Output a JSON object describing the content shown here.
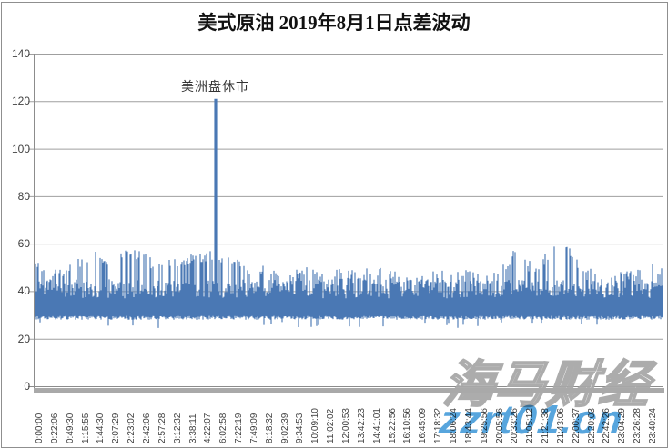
{
  "title": "美式原油 2019年8月1日点差波动",
  "annotation": "美洲盘休市",
  "watermark": {
    "brand": "海马财经",
    "url": "zzrt01.cn"
  },
  "colors": {
    "bar": "#4a78b4",
    "gridline": "#9f9f9f",
    "axis": "#8c8c8c",
    "strip": "#a9a9a9",
    "title_text": "#111111",
    "tick_text": "#3f3f3f",
    "watermark_blue": "#57a5dd",
    "watermark_outline": "#a8a8a8"
  },
  "chart_data": {
    "type": "line",
    "title": "美式原油 2019年8月1日点差波动",
    "xlabel": "",
    "ylabel": "",
    "ylim": [
      0,
      140
    ],
    "ytick_step": 20,
    "y_ticks": [
      0,
      20,
      40,
      60,
      80,
      100,
      120,
      140
    ],
    "grid": true,
    "x_labels": [
      "0:00:00",
      "0:22:06",
      "0:49:30",
      "1:15:55",
      "1:44:30",
      "2:07:29",
      "2:23:02",
      "2:42:06",
      "2:57:28",
      "3:12:32",
      "3:38:11",
      "4:22:07",
      "6:02:58",
      "7:22:19",
      "7:49:09",
      "8:18:32",
      "9:02:39",
      "9:34:53",
      "10:09:10",
      "11:02:02",
      "12:00:53",
      "13:42:23",
      "14:41:01",
      "15:22:56",
      "16:10:56",
      "16:45:09",
      "17:18:32",
      "18:06:24",
      "18:43:44",
      "19:25:56",
      "20:05:56",
      "20:33:26",
      "21:05:12",
      "21:21:38",
      "21:43:06",
      "22:00:37",
      "22:20:03",
      "22:42:26",
      "23:04:29",
      "23:26:28",
      "23:40:24"
    ],
    "annotation": {
      "text": "美洲盘休市",
      "near_time": "6:02:58",
      "value": 121
    },
    "spike": {
      "x_frac": 0.288,
      "value": 121,
      "time": "6:02:58"
    },
    "baseline": 28.5,
    "dip_min": 24.5,
    "band_core": [
      37,
      45
    ],
    "envelope_top": [
      [
        0,
        54
      ],
      [
        0.03,
        50
      ],
      [
        0.06,
        53
      ],
      [
        0.09,
        58
      ],
      [
        0.12,
        55
      ],
      [
        0.15,
        60
      ],
      [
        0.175,
        56
      ],
      [
        0.2,
        52
      ],
      [
        0.23,
        55
      ],
      [
        0.26,
        56
      ],
      [
        0.285,
        58
      ],
      [
        0.31,
        55
      ],
      [
        0.34,
        51
      ],
      [
        0.37,
        52
      ],
      [
        0.4,
        49
      ],
      [
        0.43,
        51
      ],
      [
        0.46,
        48
      ],
      [
        0.49,
        50
      ],
      [
        0.52,
        49
      ],
      [
        0.55,
        52
      ],
      [
        0.58,
        48
      ],
      [
        0.61,
        50
      ],
      [
        0.64,
        49
      ],
      [
        0.67,
        48
      ],
      [
        0.7,
        50
      ],
      [
        0.73,
        48
      ],
      [
        0.755,
        55
      ],
      [
        0.77,
        60
      ],
      [
        0.79,
        52
      ],
      [
        0.81,
        55
      ],
      [
        0.825,
        60
      ],
      [
        0.85,
        60
      ],
      [
        0.87,
        52
      ],
      [
        0.9,
        47
      ],
      [
        0.93,
        48
      ],
      [
        0.96,
        50
      ],
      [
        0.98,
        52
      ],
      [
        1,
        51
      ]
    ],
    "render_seed": 20190801
  }
}
